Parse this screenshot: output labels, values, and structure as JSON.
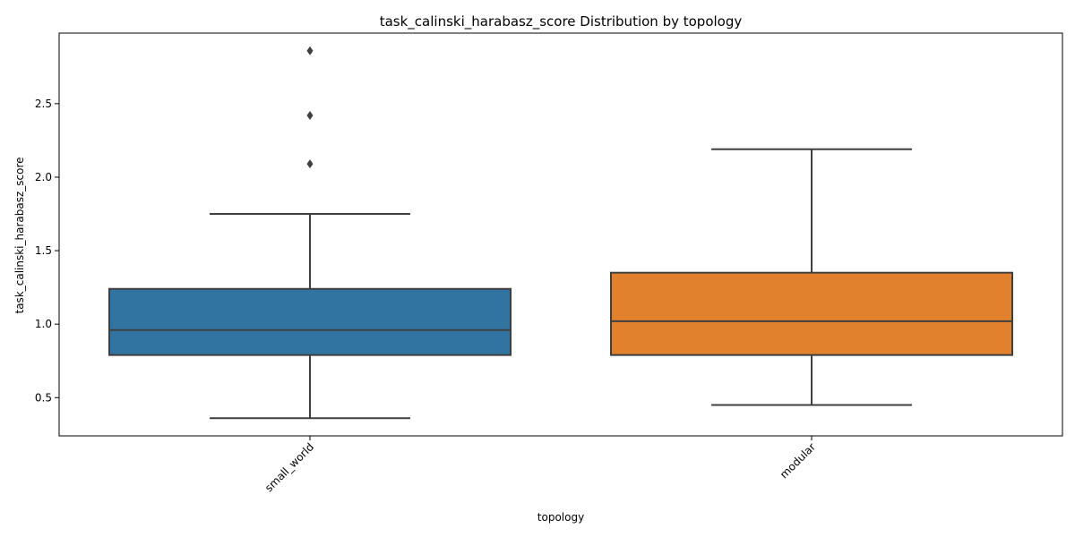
{
  "chart_data": {
    "type": "box",
    "title": "task_calinski_harabasz_score Distribution by topology",
    "xlabel": "topology",
    "ylabel": "task_calinski_harabasz_score",
    "ylim": [
      0.24,
      2.98
    ],
    "yticks": [
      0.5,
      1.0,
      1.5,
      2.0,
      2.5
    ],
    "ytick_labels": [
      "0.5",
      "1.0",
      "1.5",
      "2.0",
      "2.5"
    ],
    "grid": false,
    "categories": [
      "small_world",
      "modular"
    ],
    "boxes": [
      {
        "category": "small_world",
        "color": "#3274a1",
        "whisker_low": 0.36,
        "q1": 0.79,
        "median": 0.96,
        "q3": 1.24,
        "whisker_high": 1.75,
        "outliers": [
          2.09,
          2.42,
          2.86
        ]
      },
      {
        "category": "modular",
        "color": "#e1812c",
        "whisker_low": 0.45,
        "q1": 0.79,
        "median": 1.02,
        "q3": 1.35,
        "whisker_high": 2.19,
        "outliers": []
      }
    ],
    "line_color": "#3f3f3f"
  }
}
